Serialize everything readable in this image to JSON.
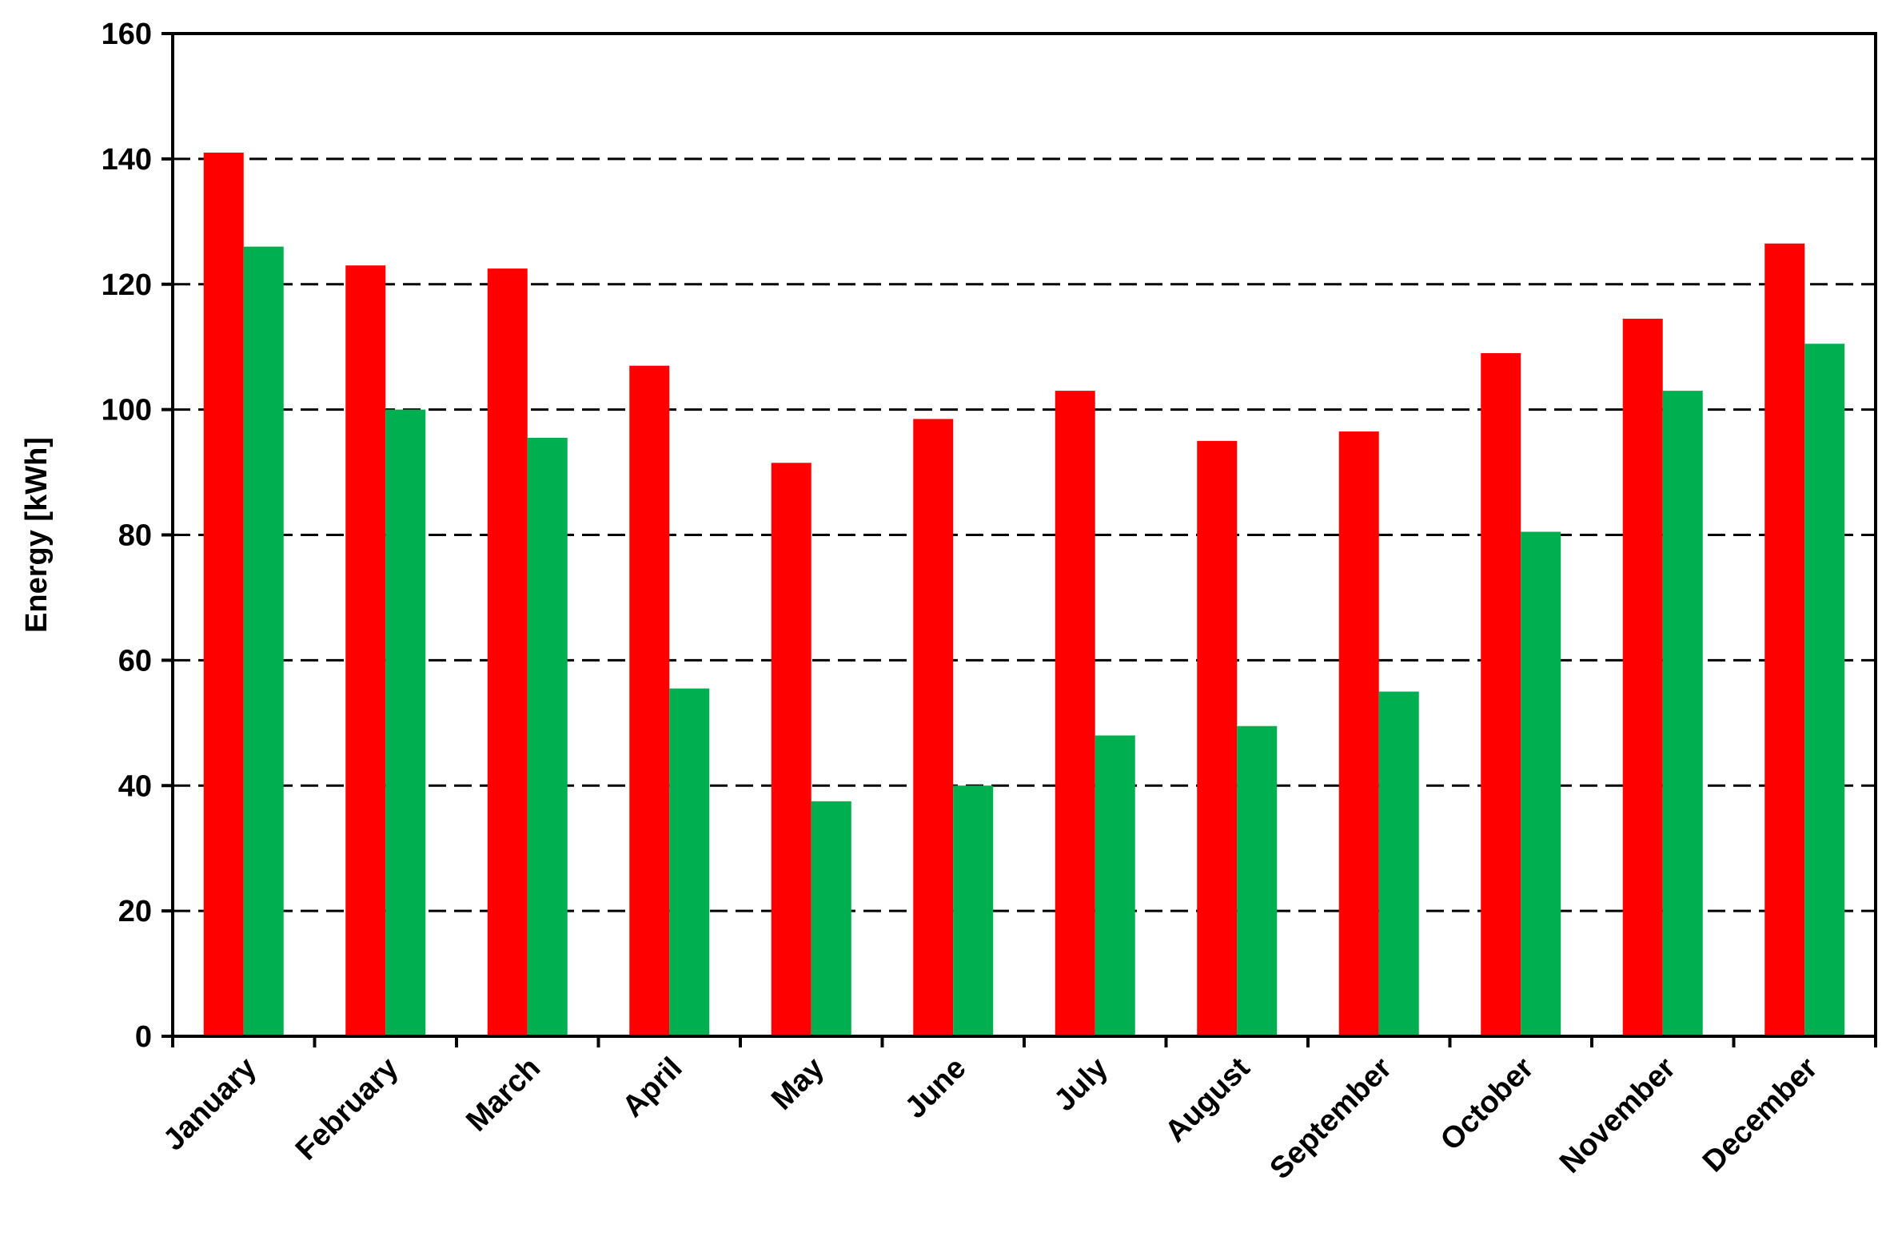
{
  "colors": {
    "series_1": "#ff0000",
    "series_2": "#00b050",
    "axis": "#000000",
    "grid": "#000000",
    "background": "#ffffff"
  },
  "chart_data": {
    "type": "bar",
    "title": "",
    "xlabel": "",
    "ylabel": "Energy [kWh]",
    "ylim": [
      0,
      160
    ],
    "yticks": [
      0,
      20,
      40,
      60,
      80,
      100,
      120,
      140,
      160
    ],
    "grid": "horizontal dashed",
    "legend": "none",
    "categories": [
      "January",
      "February",
      "March",
      "April",
      "May",
      "June",
      "July",
      "August",
      "September",
      "October",
      "November",
      "December"
    ],
    "series": [
      {
        "color": "#ff0000",
        "values": [
          141,
          123,
          122.5,
          107,
          91.5,
          98.5,
          103,
          95,
          96.5,
          109,
          114.5,
          126.5
        ]
      },
      {
        "color": "#00b050",
        "values": [
          126,
          100,
          95.5,
          55.5,
          37.5,
          40,
          48,
          49.5,
          55,
          80.5,
          103,
          110.5
        ]
      }
    ]
  }
}
